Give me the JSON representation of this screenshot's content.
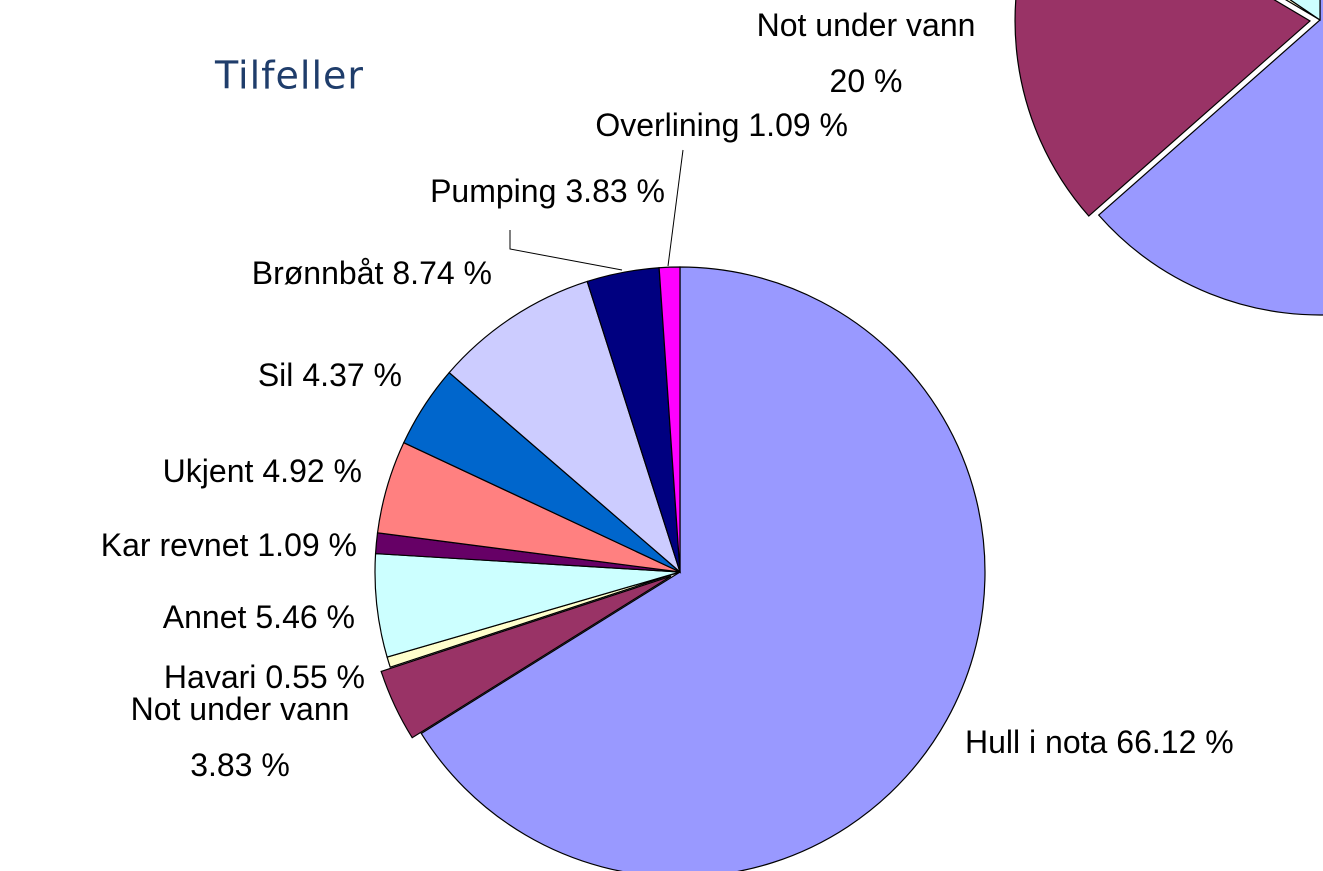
{
  "chart_data": [
    {
      "type": "pie",
      "title": "Tilfeller",
      "categories": [
        "Hull i nota",
        "Not under vann",
        "Havari",
        "Annet",
        "Kar revnet",
        "Ukjent",
        "Sil",
        "Brønnbåt",
        "Pumping",
        "Overlining"
      ],
      "values": [
        66.12,
        3.83,
        0.55,
        5.46,
        1.09,
        4.92,
        4.37,
        8.74,
        3.83,
        1.09
      ],
      "value_labels": [
        "66.12 %",
        "3.83 %",
        "0.55 %",
        "5.46 %",
        "1.09 %",
        "4.92 %",
        "4.37 %",
        "8.74 %",
        "3.83 %",
        "1.09 %"
      ],
      "colors": [
        "#9999ff",
        "#993366",
        "#ffffcc",
        "#ccffff",
        "#660066",
        "#ff8080",
        "#0066cc",
        "#ccccff",
        "#000080",
        "#ff00ff"
      ]
    },
    {
      "type": "pie",
      "categories": [
        null,
        "Not under vann",
        null,
        null
      ],
      "values": [
        63.5,
        20,
        1,
        15.5
      ],
      "value_labels": [
        null,
        "20 %",
        null,
        null
      ],
      "colors": [
        "#9999ff",
        "#993366",
        "#ffffcc",
        "#ccffff"
      ]
    }
  ]
}
